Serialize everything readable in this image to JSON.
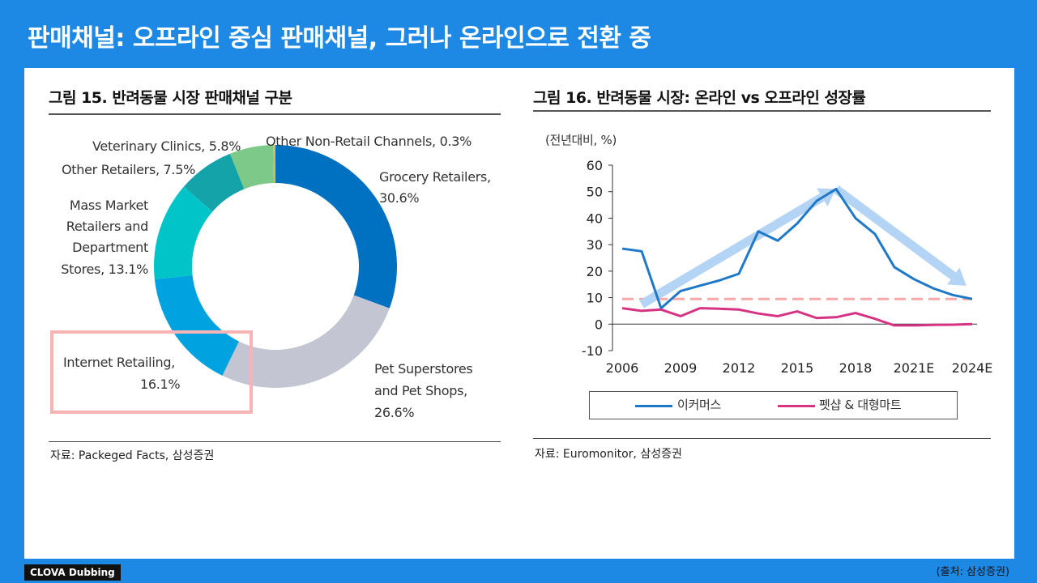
{
  "slide": {
    "title": "판매채널: 오프라인 중심 판매채널, 그러나 온라인으로 전환 중"
  },
  "footer": {
    "logo": "CLOVA Dubbing",
    "source": "(출처: 삼성증권)"
  },
  "colors": {
    "background": "#1e88e5",
    "ecommerce": "#1f78c8",
    "petshop": "#d63384",
    "reference": "#f8a8a8",
    "trend_arrow": "#b3d4f5",
    "highlight": "#f8b4b4"
  },
  "left": {
    "title": "그림 15. 반려동물 시장 판매채널 구분",
    "source": "자료: Packeged Facts, 삼성증권",
    "labels": {
      "grocery_1": "Grocery Retailers,",
      "grocery_2": "30.6%",
      "pet_1": "Pet Superstores",
      "pet_2": "and Pet Shops,",
      "pet_3": "26.6%",
      "internet_1": "Internet Retailing,",
      "internet_2": "16.1%",
      "mass_1": "Mass Market",
      "mass_2": "Retailers and",
      "mass_3": "Department",
      "mass_4": "Stores, 13.1%",
      "other_retail": "Other Retailers, 7.5%",
      "vet": "Veterinary Clinics, 5.8%",
      "other_nonretail": "Other Non-Retail Channels, 0.3%"
    }
  },
  "right": {
    "title": "그림 16. 반려동물 시장: 온라인 vs 오프라인 성장률",
    "unit": "(전년대비, %)",
    "source": "자료: Euromonitor, 삼성증권",
    "legend": {
      "ecommerce": "이커머스",
      "petshop": "펫샵 & 대형마트"
    }
  },
  "chart_data": [
    {
      "type": "pie",
      "variant": "donut",
      "title": "그림 15. 반려동물 시장 판매채널 구분",
      "slices": [
        {
          "label": "Grocery Retailers",
          "value": 30.6,
          "color": "#0070c0"
        },
        {
          "label": "Pet Superstores and Pet Shops",
          "value": 26.6,
          "color": "#c3c6d2"
        },
        {
          "label": "Internet Retailing",
          "value": 16.1,
          "color": "#00a3e0"
        },
        {
          "label": "Mass Market Retailers and Department Stores",
          "value": 13.1,
          "color": "#00c4c8"
        },
        {
          "label": "Other Retailers",
          "value": 7.5,
          "color": "#14a3a8"
        },
        {
          "label": "Veterinary Clinics",
          "value": 5.8,
          "color": "#7dc98a"
        },
        {
          "label": "Other Non-Retail Channels",
          "value": 0.3,
          "color": "#c8c060"
        }
      ],
      "highlighted": "Internet Retailing"
    },
    {
      "type": "line",
      "title": "그림 16. 반려동물 시장: 온라인 vs 오프라인 성장률",
      "ylabel": "(전년대비, %)",
      "ylim": [
        -10,
        60
      ],
      "yticks": [
        -10,
        0,
        10,
        20,
        30,
        40,
        50,
        60
      ],
      "xlim": [
        2006,
        2024
      ],
      "xticks": [
        "2006",
        "2009",
        "2012",
        "2015",
        "2018",
        "2021E",
        "2024E"
      ],
      "xtick_values": [
        2006,
        2009,
        2012,
        2015,
        2018,
        2021,
        2024
      ],
      "reference_line": 9.5,
      "series": [
        {
          "name": "이커머스",
          "color": "#1f78c8",
          "x": [
            2006,
            2007,
            2008,
            2009,
            2010,
            2011,
            2012,
            2013,
            2014,
            2015,
            2016,
            2017,
            2018,
            2019,
            2020,
            2021,
            2022,
            2023,
            2024
          ],
          "values": [
            28.5,
            27.5,
            6,
            12.5,
            14.5,
            16.5,
            19,
            35,
            31.5,
            38,
            46.5,
            51,
            40,
            34,
            21.5,
            17,
            13.5,
            11,
            9.5
          ]
        },
        {
          "name": "펫샵 & 대형마트",
          "color": "#d63384",
          "x": [
            2006,
            2007,
            2008,
            2009,
            2010,
            2011,
            2012,
            2013,
            2014,
            2015,
            2016,
            2017,
            2018,
            2019,
            2020,
            2021,
            2022,
            2023,
            2024
          ],
          "values": [
            6,
            5,
            5.5,
            3,
            6,
            5.8,
            5.5,
            4,
            3,
            4.8,
            2.3,
            2.6,
            4.2,
            2,
            -0.5,
            -0.5,
            -0.3,
            -0.2,
            0
          ]
        }
      ],
      "trend_arrows": [
        {
          "from": [
            2007,
            7.5
          ],
          "to": [
            2017,
            51
          ]
        },
        {
          "from": [
            2017,
            51
          ],
          "to": [
            2023.7,
            14.5
          ]
        }
      ]
    }
  ]
}
